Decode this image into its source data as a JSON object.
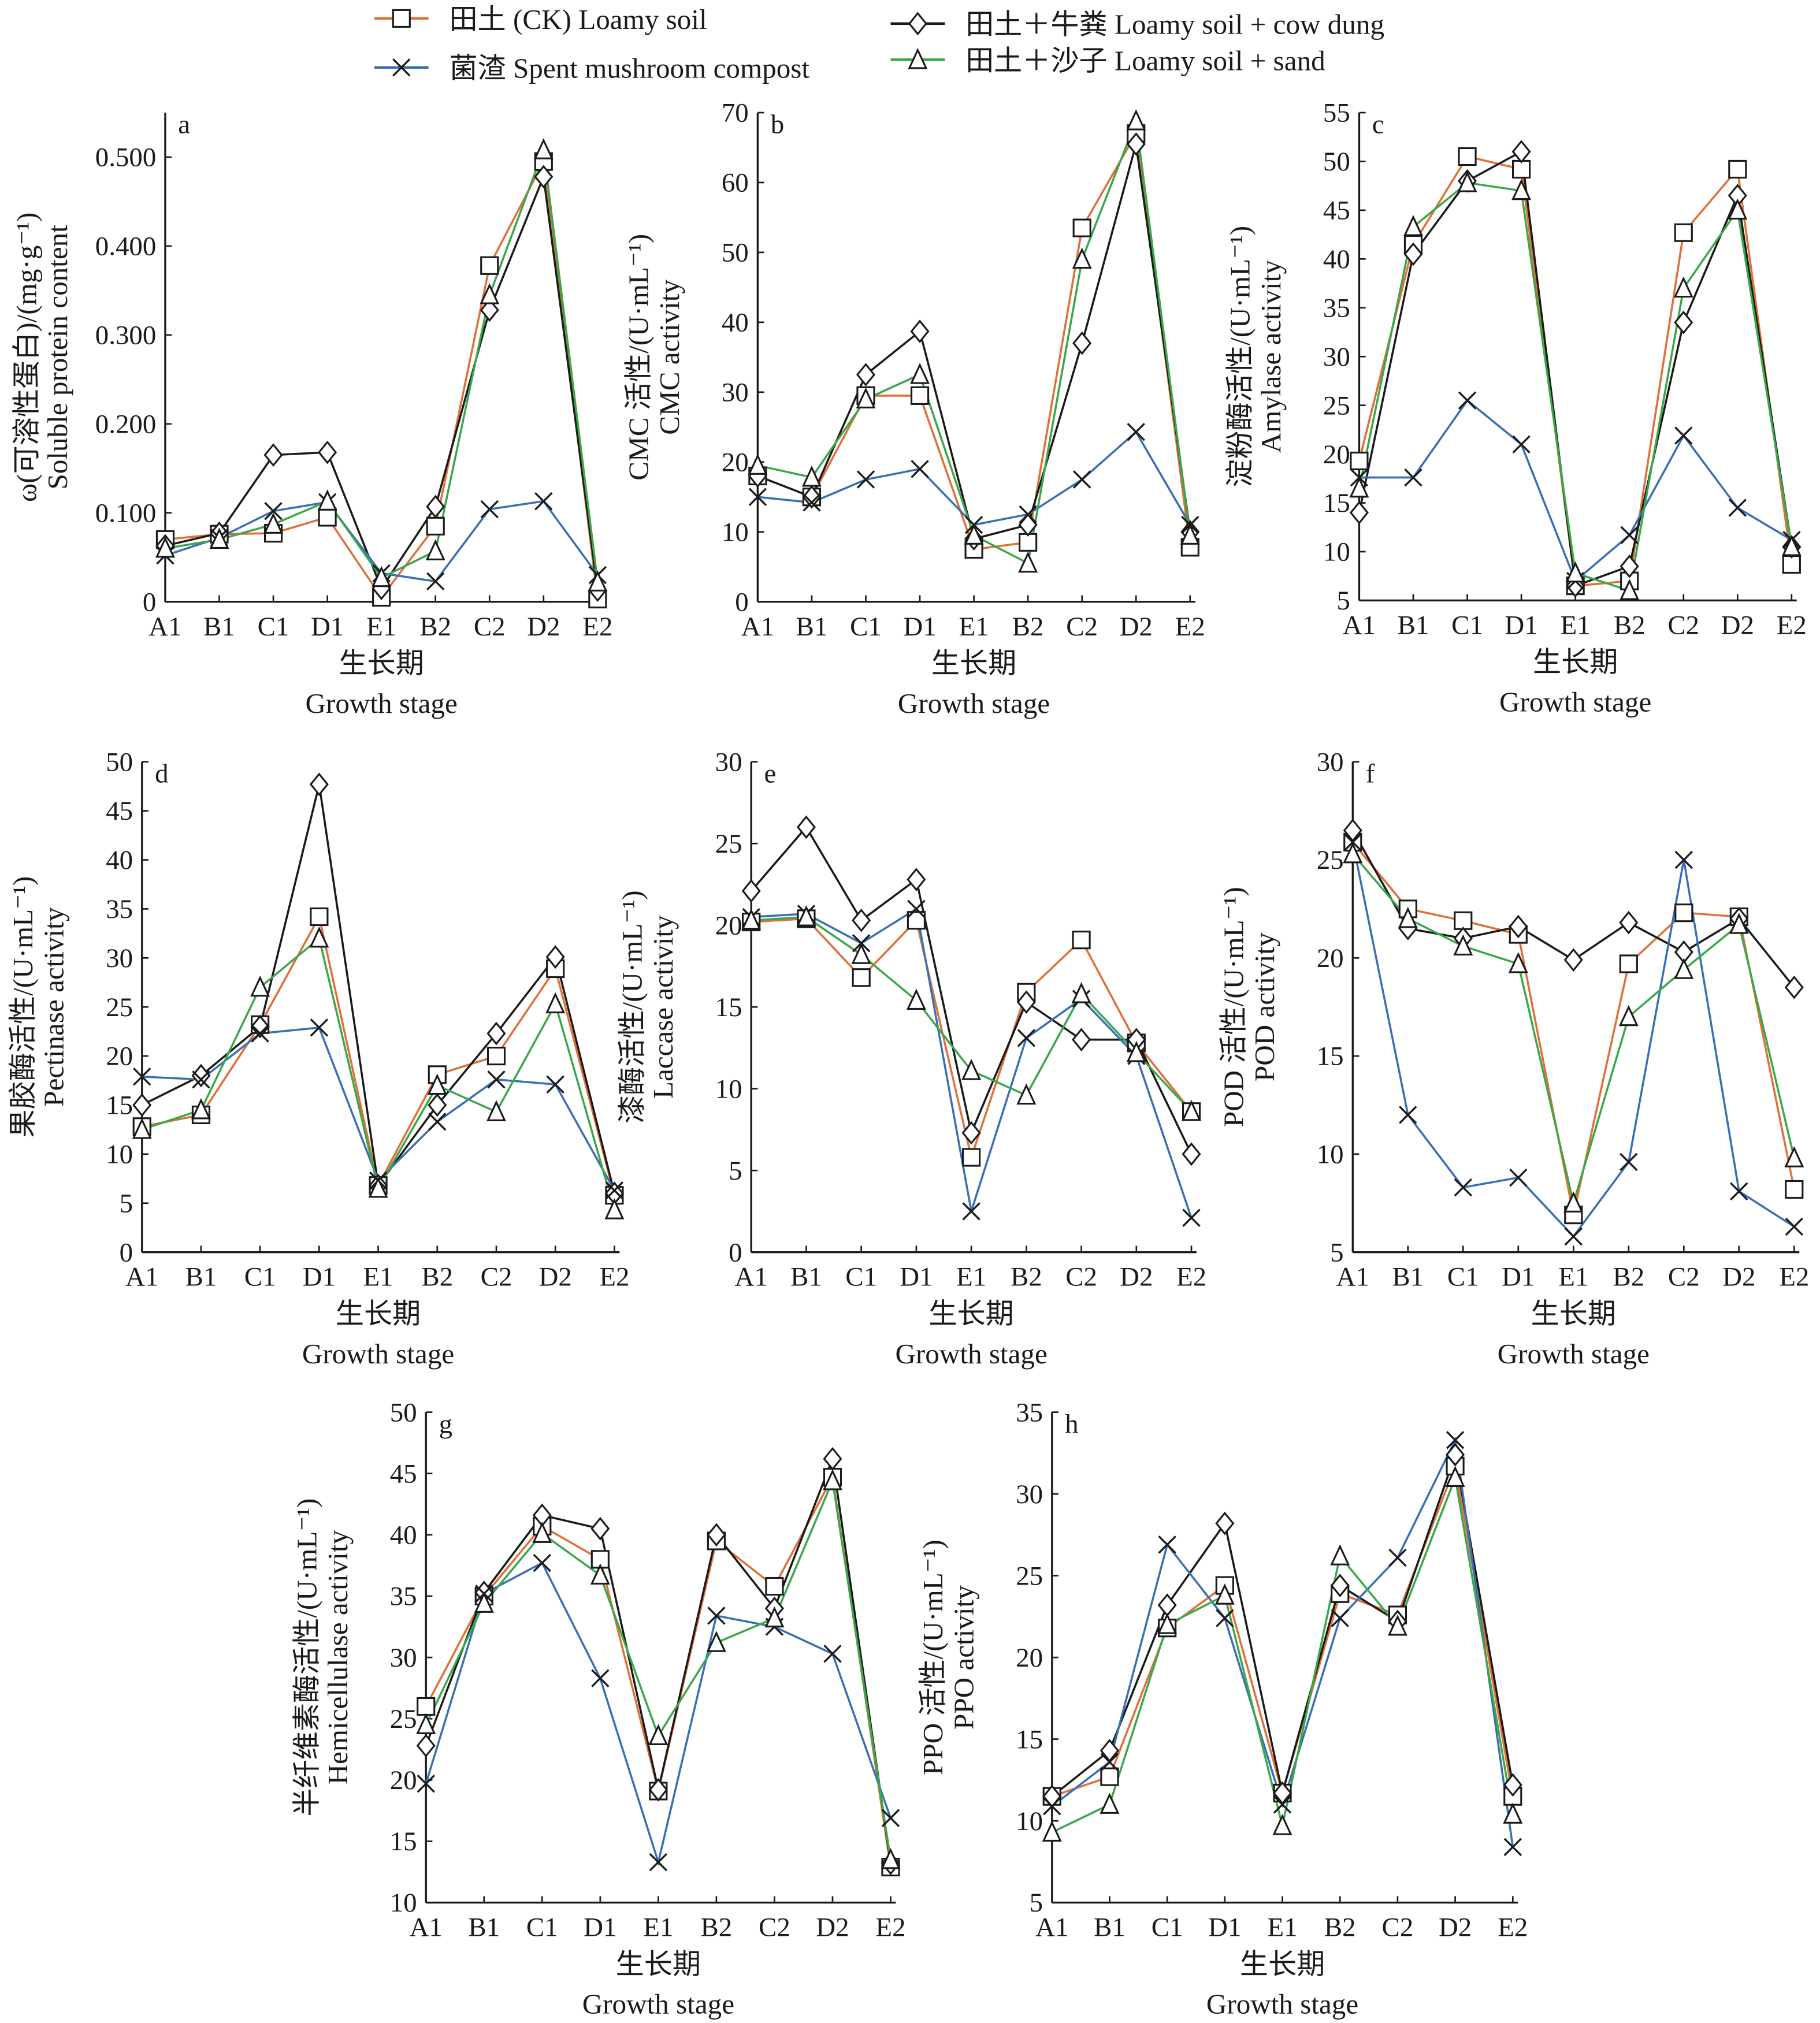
{
  "legend": {
    "position": "top",
    "items": [
      {
        "key": "ck",
        "label": "田土 (CK) Loamy soil",
        "marker": "square",
        "color": "#e0703a"
      },
      {
        "key": "mush",
        "label": "菌渣 Spent mushroom compost",
        "marker": "x",
        "color": "#3a6fb5"
      },
      {
        "key": "cow",
        "label": "田土＋牛粪 Loamy soil + cow dung",
        "marker": "diamond",
        "color": "#1a1a1a"
      },
      {
        "key": "sand",
        "label": "田土＋沙子 Loamy soil + sand",
        "marker": "triangle",
        "color": "#3aa84a"
      }
    ]
  },
  "chart_data": [
    {
      "type": "line",
      "panel": "a",
      "ylabel_cn": "ω(可溶性蛋白)/(mg·g⁻¹)",
      "ylabel_en": "Soluble protein content",
      "xlabel_cn": "生长期",
      "xlabel_en": "Growth stage",
      "categories": [
        "A1",
        "B1",
        "C1",
        "D1",
        "E1",
        "B2",
        "C2",
        "D2",
        "E2"
      ],
      "ylim": [
        0,
        0.55
      ],
      "yticks": [
        "0",
        "0.100",
        "0.200",
        "0.300",
        "0.400",
        "0.500"
      ],
      "ytick_values": [
        0,
        0.1,
        0.2,
        0.3,
        0.4,
        0.5
      ],
      "series": [
        {
          "key": "ck",
          "values": [
            0.07,
            0.076,
            0.077,
            0.095,
            0.005,
            0.085,
            0.378,
            0.495,
            0.003
          ]
        },
        {
          "key": "cow",
          "values": [
            0.063,
            0.077,
            0.165,
            0.168,
            0.015,
            0.107,
            0.328,
            0.478,
            0.013
          ]
        },
        {
          "key": "mush",
          "values": [
            0.052,
            0.072,
            0.102,
            0.112,
            0.032,
            0.023,
            0.104,
            0.113,
            0.03
          ]
        },
        {
          "key": "sand",
          "values": [
            0.06,
            0.07,
            0.087,
            0.113,
            0.027,
            0.057,
            0.345,
            0.508,
            0.022
          ]
        }
      ]
    },
    {
      "type": "line",
      "panel": "b",
      "ylabel_cn": "CMC 活性/(U·mL⁻¹)",
      "ylabel_en": "CMC activity",
      "xlabel_cn": "生长期",
      "xlabel_en": "Growth stage",
      "categories": [
        "A1",
        "B1",
        "C1",
        "D1",
        "E1",
        "B2",
        "C2",
        "D2",
        "E2"
      ],
      "ylim": [
        0,
        70
      ],
      "yticks": [
        "0",
        "10",
        "20",
        "30",
        "40",
        "50",
        "60",
        "70"
      ],
      "ytick_values": [
        0,
        10,
        20,
        30,
        40,
        50,
        60,
        70
      ],
      "series": [
        {
          "key": "ck",
          "values": [
            18,
            15,
            29.5,
            29.5,
            7.5,
            8.5,
            53.5,
            67,
            7.8
          ]
        },
        {
          "key": "cow",
          "values": [
            18,
            15,
            32.5,
            38.7,
            9,
            11,
            37,
            65.5,
            10
          ]
        },
        {
          "key": "mush",
          "values": [
            15,
            14.2,
            17.5,
            19,
            11,
            12.5,
            17.5,
            24.3,
            11
          ]
        },
        {
          "key": "sand",
          "values": [
            19.5,
            17.8,
            29,
            32.5,
            9.5,
            5.5,
            49,
            68.8,
            9.5
          ]
        }
      ]
    },
    {
      "type": "line",
      "panel": "c",
      "ylabel_cn": "淀粉酶活性/(U·mL⁻¹)",
      "ylabel_en": "Amylase activity",
      "xlabel_cn": "生长期",
      "xlabel_en": "Growth stage",
      "categories": [
        "A1",
        "B1",
        "C1",
        "D1",
        "E1",
        "B2",
        "C2",
        "D2",
        "E2"
      ],
      "ylim": [
        5,
        55
      ],
      "yticks": [
        "5",
        "10",
        "15",
        "20",
        "25",
        "30",
        "35",
        "40",
        "45",
        "50",
        "55"
      ],
      "ytick_values": [
        5,
        10,
        15,
        20,
        25,
        30,
        35,
        40,
        45,
        50,
        55
      ],
      "series": [
        {
          "key": "ck",
          "values": [
            19.3,
            41.5,
            50.5,
            49.2,
            6.5,
            7,
            42.7,
            49.2,
            8.7
          ]
        },
        {
          "key": "cow",
          "values": [
            14,
            40.5,
            48,
            51,
            6.5,
            8.5,
            33.5,
            46.5,
            10.5
          ]
        },
        {
          "key": "mush",
          "values": [
            17.6,
            17.6,
            25.5,
            21,
            7,
            11.7,
            21.9,
            14.5,
            11.2
          ]
        },
        {
          "key": "sand",
          "values": [
            16.5,
            43.3,
            47.8,
            47,
            7.8,
            6,
            37,
            45,
            10.5
          ]
        }
      ]
    },
    {
      "type": "line",
      "panel": "d",
      "ylabel_cn": "果胶酶活性/(U·mL⁻¹)",
      "ylabel_en": "Pectinase activity",
      "xlabel_cn": "生长期",
      "xlabel_en": "Growth stage",
      "categories": [
        "A1",
        "B1",
        "C1",
        "D1",
        "E1",
        "B2",
        "C2",
        "D2",
        "E2"
      ],
      "ylim": [
        0,
        50
      ],
      "yticks": [
        "0",
        "5",
        "10",
        "15",
        "20",
        "25",
        "30",
        "35",
        "40",
        "45",
        "50"
      ],
      "ytick_values": [
        0,
        5,
        10,
        15,
        20,
        25,
        30,
        35,
        40,
        45,
        50
      ],
      "series": [
        {
          "key": "ck",
          "values": [
            12.8,
            14,
            23.2,
            34.2,
            6.8,
            18.1,
            20,
            28.9,
            5.8
          ]
        },
        {
          "key": "cow",
          "values": [
            15,
            18,
            23,
            47.7,
            6.8,
            15,
            22.3,
            30.1,
            6
          ]
        },
        {
          "key": "mush",
          "values": [
            17.9,
            17.6,
            22.3,
            22.9,
            7.3,
            13.3,
            17.6,
            17.1,
            6.3
          ]
        },
        {
          "key": "sand",
          "values": [
            12.5,
            14.5,
            27,
            32,
            6.5,
            17,
            14.3,
            25.3,
            4.3
          ]
        }
      ]
    },
    {
      "type": "line",
      "panel": "e",
      "ylabel_cn": "漆酶活性/(U·mL⁻¹)",
      "ylabel_en": "Laccase activity",
      "xlabel_cn": "生长期",
      "xlabel_en": "Growth stage",
      "categories": [
        "A1",
        "B1",
        "C1",
        "D1",
        "E1",
        "B2",
        "C2",
        "D2",
        "E2"
      ],
      "ylim": [
        0,
        30
      ],
      "yticks": [
        "0",
        "5",
        "10",
        "15",
        "20",
        "25",
        "30"
      ],
      "ytick_values": [
        0,
        5,
        10,
        15,
        20,
        25,
        30
      ],
      "series": [
        {
          "key": "ck",
          "values": [
            20.2,
            20.4,
            16.8,
            20.3,
            5.8,
            15.9,
            19.1,
            12.8,
            8.6
          ]
        },
        {
          "key": "cow",
          "values": [
            22.1,
            26,
            20.3,
            22.8,
            7.3,
            15.3,
            13,
            13,
            6
          ]
        },
        {
          "key": "mush",
          "values": [
            20.5,
            20.7,
            18.9,
            21,
            2.5,
            13.1,
            15.5,
            12,
            2.1
          ]
        },
        {
          "key": "sand",
          "values": [
            20.3,
            20.5,
            18.2,
            15.4,
            11.1,
            9.6,
            15.8,
            12.2,
            8.6
          ]
        }
      ]
    },
    {
      "type": "line",
      "panel": "f",
      "ylabel_cn": "POD 活性/(U·mL⁻¹)",
      "ylabel_en": "POD activity",
      "xlabel_cn": "生长期",
      "xlabel_en": "Growth stage",
      "categories": [
        "A1",
        "B1",
        "C1",
        "D1",
        "E1",
        "B2",
        "C2",
        "D2",
        "E2"
      ],
      "ylim": [
        5,
        30
      ],
      "yticks": [
        "5",
        "10",
        "15",
        "20",
        "25",
        "30"
      ],
      "ytick_values": [
        5,
        10,
        15,
        20,
        25,
        30
      ],
      "series": [
        {
          "key": "ck",
          "values": [
            25.9,
            22.5,
            21.9,
            21.2,
            6.9,
            19.7,
            22.3,
            22.1,
            8.2
          ]
        },
        {
          "key": "cow",
          "values": [
            26.5,
            21.5,
            21,
            21.6,
            19.9,
            21.8,
            20.3,
            22,
            18.5
          ]
        },
        {
          "key": "mush",
          "values": [
            25.9,
            12,
            8.3,
            8.8,
            5.8,
            9.6,
            25,
            8.1,
            6.3
          ]
        },
        {
          "key": "sand",
          "values": [
            25.3,
            22,
            20.6,
            19.7,
            7.5,
            17,
            19.4,
            21.7,
            9.8
          ]
        }
      ]
    },
    {
      "type": "line",
      "panel": "g",
      "ylabel_cn": "半纤维素酶活性/(U·mL⁻¹)",
      "ylabel_en": "Hemicellulase activity",
      "xlabel_cn": "生长期",
      "xlabel_en": "Growth stage",
      "categories": [
        "A1",
        "B1",
        "C1",
        "D1",
        "E1",
        "B2",
        "C2",
        "D2",
        "E2"
      ],
      "ylim": [
        10,
        50
      ],
      "yticks": [
        "10",
        "15",
        "20",
        "25",
        "30",
        "35",
        "40",
        "45",
        "50"
      ],
      "ytick_values": [
        10,
        15,
        20,
        25,
        30,
        35,
        40,
        45,
        50
      ],
      "series": [
        {
          "key": "ck",
          "values": [
            26,
            35,
            40.7,
            38,
            19.1,
            39.5,
            35.8,
            44.7,
            12.9
          ]
        },
        {
          "key": "cow",
          "values": [
            22.8,
            35.3,
            41.6,
            40.5,
            19.2,
            40,
            34,
            46.2,
            13.2
          ]
        },
        {
          "key": "mush",
          "values": [
            19.7,
            35.2,
            37.7,
            28.3,
            13.3,
            33.4,
            32.5,
            30.3,
            16.9
          ]
        },
        {
          "key": "sand",
          "values": [
            24.5,
            34.4,
            40.1,
            36.7,
            23.6,
            31.2,
            33.2,
            44.4,
            13.5
          ]
        }
      ]
    },
    {
      "type": "line",
      "panel": "h",
      "ylabel_cn": "PPO 活性/(U·mL⁻¹)",
      "ylabel_en": "PPO activity",
      "xlabel_cn": "生长期",
      "xlabel_en": "Growth stage",
      "categories": [
        "A1",
        "B1",
        "C1",
        "D1",
        "E1",
        "B2",
        "C2",
        "D2",
        "E2"
      ],
      "ylim": [
        5,
        35
      ],
      "yticks": [
        "5",
        "10",
        "15",
        "20",
        "25",
        "30",
        "35"
      ],
      "ytick_values": [
        5,
        10,
        15,
        20,
        25,
        30,
        35
      ],
      "series": [
        {
          "key": "ck",
          "values": [
            11.5,
            12.7,
            21.8,
            24.4,
            11.7,
            23.9,
            22.6,
            31.7,
            11.5
          ]
        },
        {
          "key": "cow",
          "values": [
            11.5,
            14.3,
            23.2,
            28.2,
            11.7,
            24.4,
            22.2,
            32.4,
            12.2
          ]
        },
        {
          "key": "mush",
          "values": [
            10.9,
            13.6,
            26.9,
            22.4,
            11,
            22.4,
            26.1,
            33.3,
            8.4
          ]
        },
        {
          "key": "sand",
          "values": [
            9.3,
            11,
            22,
            23.8,
            9.7,
            26.2,
            21.9,
            31,
            10.4
          ]
        }
      ]
    }
  ]
}
